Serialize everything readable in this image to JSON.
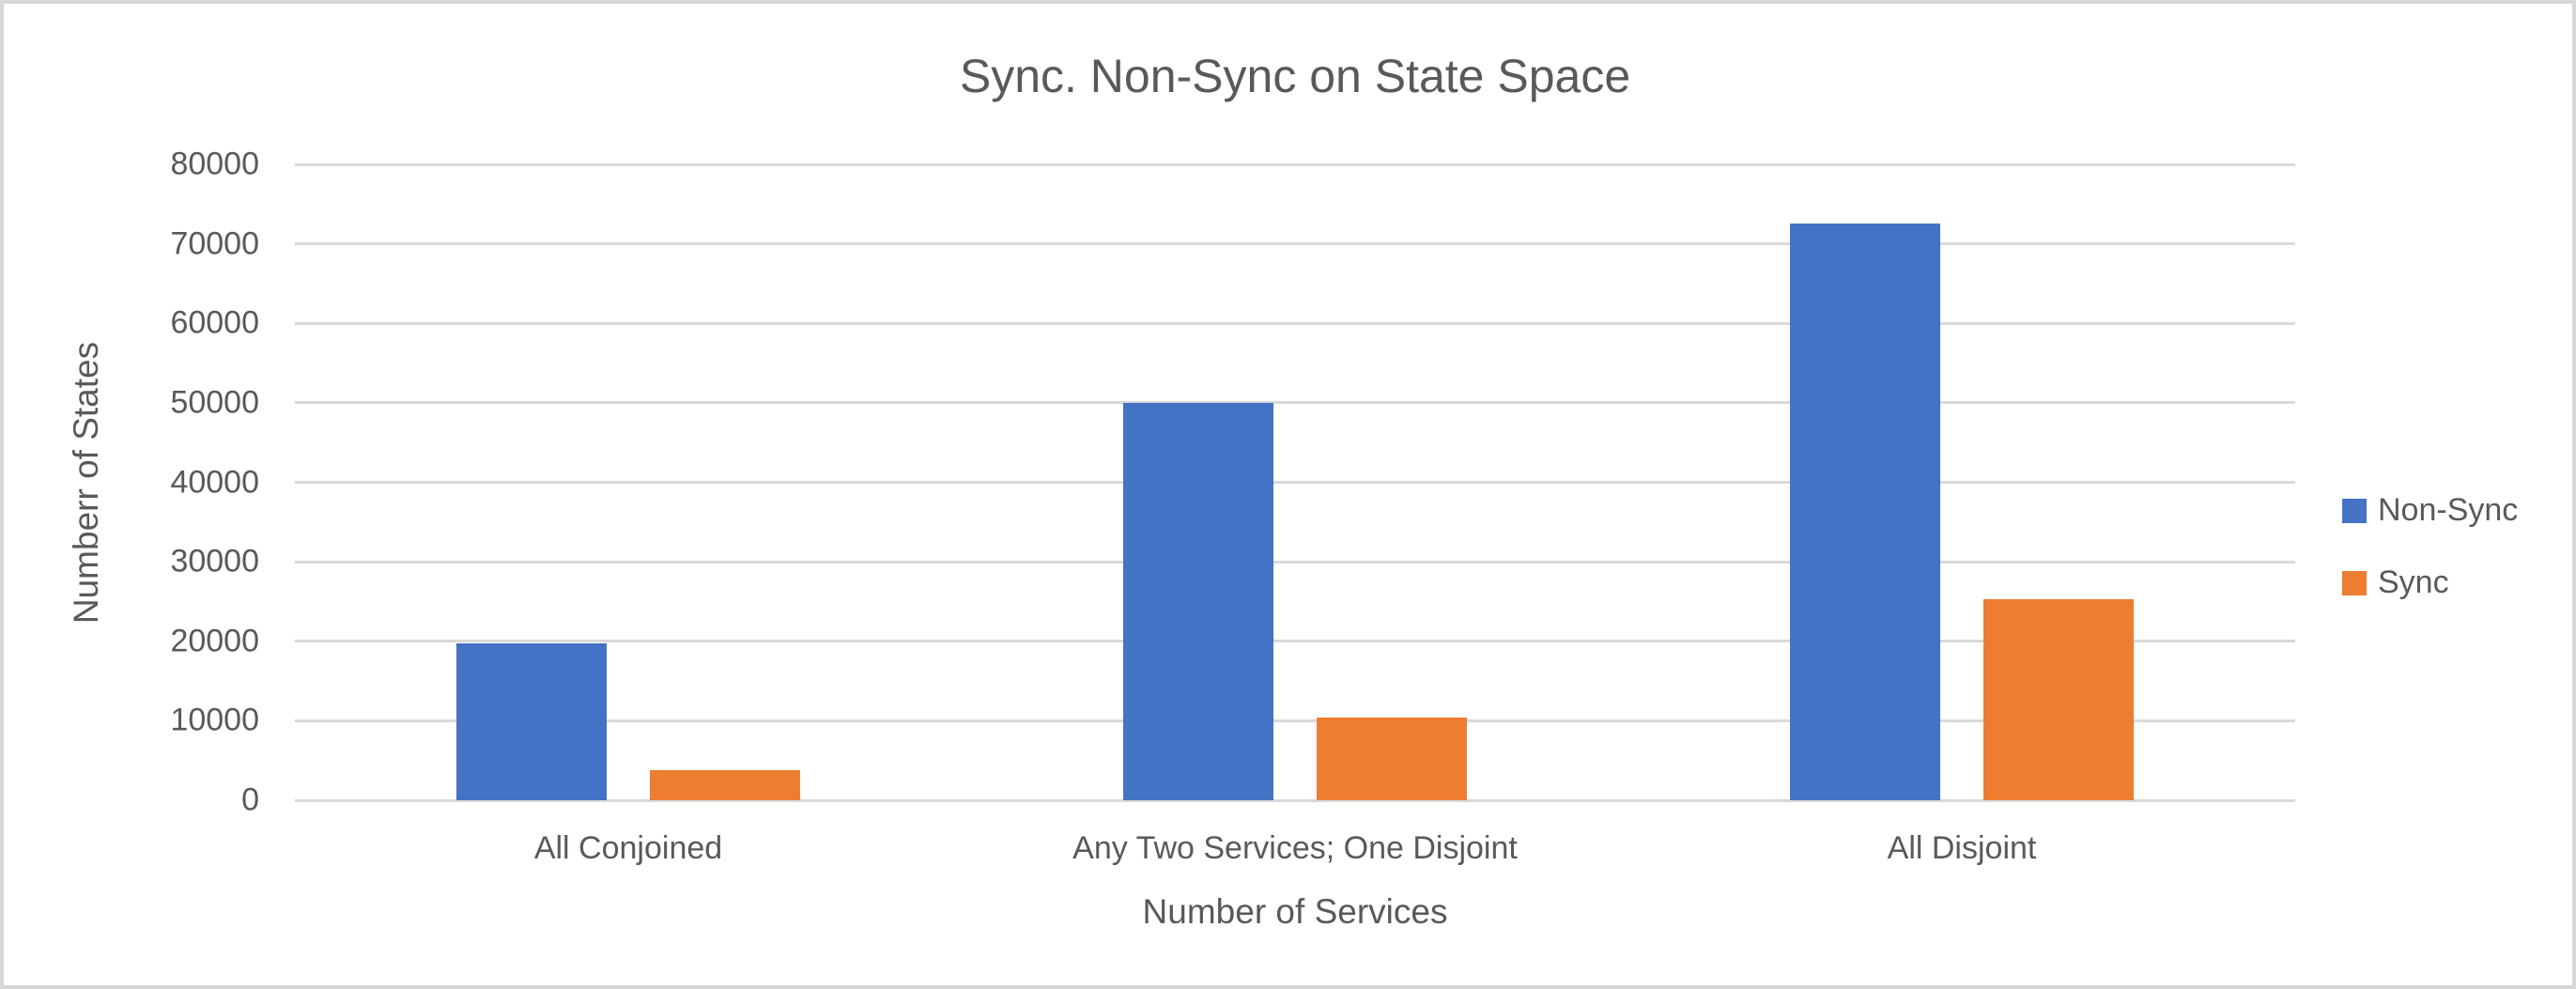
{
  "chart_data": {
    "type": "bar",
    "title": "Sync. Non-Sync on State Space",
    "xlabel": "Number of Services",
    "ylabel": "Numberr of States",
    "categories": [
      "All Conjoined",
      "Any Two Services; One Disjoint",
      "All Disjoint"
    ],
    "series": [
      {
        "name": "Non-Sync",
        "color": "#4472C4",
        "values": [
          19700,
          50000,
          72500
        ]
      },
      {
        "name": "Sync",
        "color": "#ED7D31",
        "values": [
          3800,
          10400,
          25300
        ]
      }
    ],
    "ylim": [
      0,
      80000
    ],
    "ytick_step": 10000,
    "yticks_top_to_bottom": [
      "80000",
      "70000",
      "60000",
      "50000",
      "40000",
      "30000",
      "20000",
      "10000",
      "0"
    ],
    "grid": "horizontal",
    "legend_position": "right",
    "legend": [
      {
        "label": "Non-Sync",
        "color": "#4472C4"
      },
      {
        "label": "Sync",
        "color": "#ED7D31"
      }
    ],
    "colors": {
      "gridline": "#D9D9D9",
      "text": "#595959",
      "background": "#FFFFFF",
      "border": "#D7D7D7"
    }
  }
}
